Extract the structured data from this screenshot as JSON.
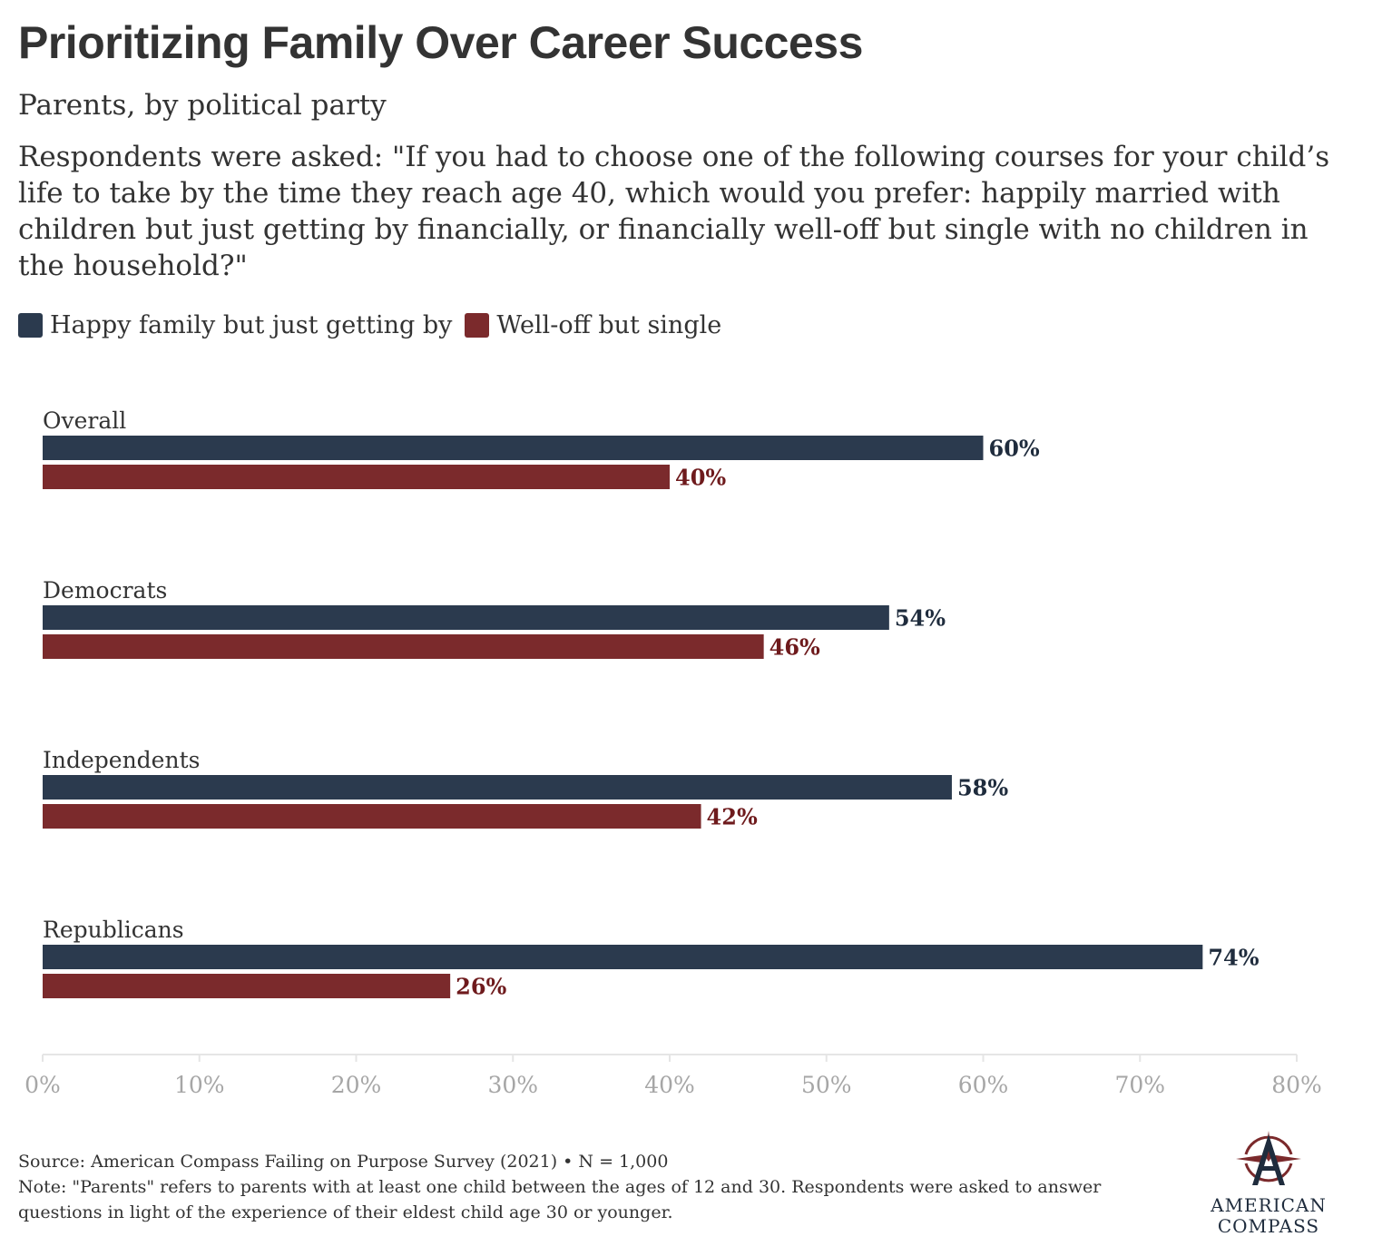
{
  "title": "Prioritizing Family Over Career Success",
  "subtitle": "Parents, by political party",
  "question": "Respondents were asked: \"If you had to choose one of the following courses for your child’s life to take by the time they reach age 40, which would you prefer: happily married with children but just getting by financially, or financially well-off but single with no children in the household?\"",
  "legend": [
    {
      "label": "Happy family but just getting by",
      "color": "#2b3a4e"
    },
    {
      "label": "Well-off but single",
      "color": "#7b2a2c"
    }
  ],
  "chart_data": {
    "type": "bar",
    "orientation": "horizontal",
    "categories": [
      "Overall",
      "Democrats",
      "Independents",
      "Republicans"
    ],
    "series": [
      {
        "name": "Happy family but just getting by",
        "values": [
          60,
          54,
          58,
          74
        ],
        "color": "#2b3a4e",
        "label_color": "#1f2c3d"
      },
      {
        "name": "Well-off but single",
        "values": [
          40,
          46,
          42,
          26
        ],
        "color": "#7b2a2c",
        "label_color": "#6e1a1c"
      }
    ],
    "value_suffix": "%",
    "xlim": [
      0,
      80
    ],
    "xticks": [
      0,
      10,
      20,
      30,
      40,
      50,
      60,
      70,
      80
    ],
    "xtick_labels": [
      "0%",
      "10%",
      "20%",
      "30%",
      "40%",
      "50%",
      "60%",
      "70%",
      "80%"
    ],
    "grid": false,
    "legend_position": "top-left"
  },
  "footer": {
    "source": "Source: American Compass Failing on Purpose Survey (2021) • N = 1,000",
    "note": "Note: \"Parents\" refers to parents with at least one child between the ages of 12 and 30. Respondents were asked to answer questions in light of the experience of their eldest child age 30 or younger."
  },
  "logo": {
    "line1": "AMERICAN",
    "line2": "COMPASS",
    "icon": "compass-star-icon"
  }
}
